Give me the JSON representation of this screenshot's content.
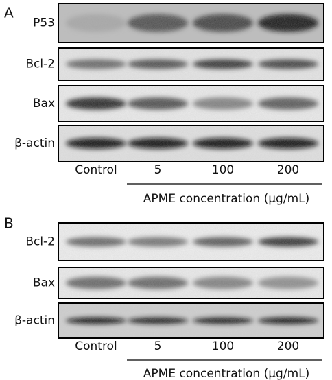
{
  "panels": [
    {
      "label": "A",
      "rows": [
        "P53",
        "Bcl-2",
        "Bax",
        "β-actin"
      ],
      "lanes": [
        "Control",
        "5",
        "100",
        "200"
      ],
      "x_label": "APME concentration (μg/mL)"
    },
    {
      "label": "B",
      "rows": [
        "Bcl-2",
        "Bax",
        "β-actin"
      ],
      "lanes": [
        "Control",
        "5",
        "100",
        "200"
      ],
      "x_label": "APME concentration (μg/mL)"
    }
  ]
}
